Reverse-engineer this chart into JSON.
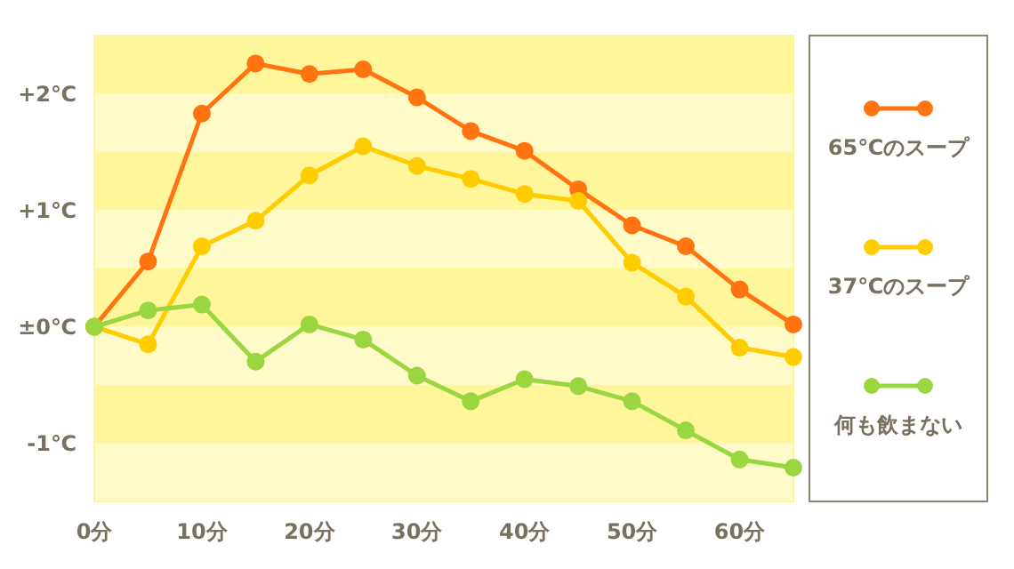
{
  "chart_data": {
    "type": "line",
    "marker": "circle",
    "legend": "right",
    "x": [
      0,
      5,
      10,
      15,
      20,
      25,
      30,
      35,
      40,
      45,
      50,
      55,
      60,
      65
    ],
    "xlim": [
      0,
      65
    ],
    "ylim": [
      -1.5,
      2.5
    ],
    "bands": [
      {
        "axis": "y",
        "from": -1.5,
        "to": -1,
        "color": "#fffbc8"
      },
      {
        "axis": "y",
        "from": -1,
        "to": -0.5,
        "color": "#fff59a"
      },
      {
        "axis": "y",
        "from": -0.5,
        "to": 0,
        "color": "#fffbc8"
      },
      {
        "axis": "y",
        "from": 0,
        "to": 0.5,
        "color": "#fff59a"
      },
      {
        "axis": "y",
        "from": 0.5,
        "to": 1,
        "color": "#fffbc8"
      },
      {
        "axis": "y",
        "from": 1,
        "to": 1.5,
        "color": "#fff59a"
      },
      {
        "axis": "y",
        "from": 1.5,
        "to": 2,
        "color": "#fffbc8"
      },
      {
        "axis": "y",
        "from": 2,
        "to": 2.5,
        "color": "#fff59a"
      }
    ],
    "xticks": [
      {
        "value": 0,
        "label": "0分"
      },
      {
        "value": 10,
        "label": "10分"
      },
      {
        "value": 20,
        "label": "20分"
      },
      {
        "value": 30,
        "label": "30分"
      },
      {
        "value": 40,
        "label": "40分"
      },
      {
        "value": 50,
        "label": "50分"
      },
      {
        "value": 60,
        "label": "60分"
      }
    ],
    "yticks": [
      {
        "value": -1,
        "label": "-1℃"
      },
      {
        "value": 0,
        "label": "±0℃"
      },
      {
        "value": 1,
        "label": "+1℃"
      },
      {
        "value": 2,
        "label": "+2℃"
      }
    ],
    "series": [
      {
        "name": "65℃のスープ",
        "color": "#ff7310",
        "values": [
          0,
          0.56,
          1.83,
          2.26,
          2.17,
          2.21,
          1.97,
          1.68,
          1.51,
          1.18,
          0.87,
          0.69,
          0.32,
          0.02
        ]
      },
      {
        "name": "37℃のスープ",
        "color": "#ffcc00",
        "values": [
          0,
          -0.15,
          0.69,
          0.91,
          1.3,
          1.55,
          1.38,
          1.27,
          1.14,
          1.08,
          0.55,
          0.26,
          -0.18,
          -0.26
        ]
      },
      {
        "name": "何も飲まない",
        "color": "#99d640",
        "values": [
          0,
          0.14,
          0.19,
          -0.3,
          0.02,
          -0.11,
          -0.42,
          -0.64,
          -0.45,
          -0.51,
          -0.64,
          -0.89,
          -1.14,
          -1.21
        ]
      }
    ]
  }
}
